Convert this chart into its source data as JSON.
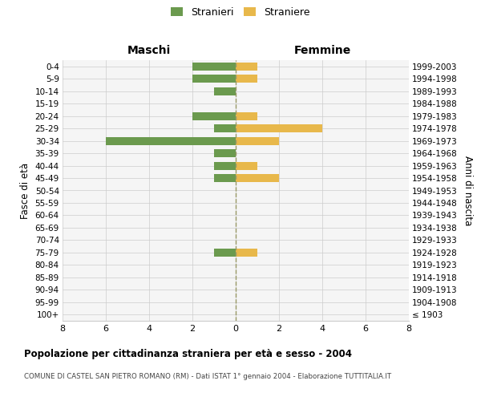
{
  "age_groups": [
    "100+",
    "95-99",
    "90-94",
    "85-89",
    "80-84",
    "75-79",
    "70-74",
    "65-69",
    "60-64",
    "55-59",
    "50-54",
    "45-49",
    "40-44",
    "35-39",
    "30-34",
    "25-29",
    "20-24",
    "15-19",
    "10-14",
    "5-9",
    "0-4"
  ],
  "birth_years": [
    "≤ 1903",
    "1904-1908",
    "1909-1913",
    "1914-1918",
    "1919-1923",
    "1924-1928",
    "1929-1933",
    "1934-1938",
    "1939-1943",
    "1944-1948",
    "1949-1953",
    "1954-1958",
    "1959-1963",
    "1964-1968",
    "1969-1973",
    "1974-1978",
    "1979-1983",
    "1984-1988",
    "1989-1993",
    "1994-1998",
    "1999-2003"
  ],
  "maschi_stranieri": [
    0,
    0,
    0,
    0,
    0,
    1,
    0,
    0,
    0,
    0,
    0,
    1,
    1,
    1,
    6,
    1,
    2,
    0,
    1,
    2,
    2
  ],
  "femmine_straniere": [
    0,
    0,
    0,
    0,
    0,
    1,
    0,
    0,
    0,
    0,
    0,
    2,
    1,
    0,
    2,
    4,
    1,
    0,
    0,
    1,
    1
  ],
  "color_maschi": "#6b9a4e",
  "color_femmine": "#e8b84b",
  "xlim": 8,
  "title": "Popolazione per cittadinanza straniera per età e sesso - 2004",
  "subtitle": "COMUNE DI CASTEL SAN PIETRO ROMANO (RM) - Dati ISTAT 1° gennaio 2004 - Elaborazione TUTTITALIA.IT",
  "ylabel_left": "Fasce di età",
  "ylabel_right": "Anni di nascita",
  "xlabel_maschi": "Maschi",
  "xlabel_femmine": "Femmine",
  "legend_stranieri": "Stranieri",
  "legend_straniere": "Straniere",
  "bg_color": "#f5f5f5",
  "grid_color": "#cccccc",
  "fig_width": 6.0,
  "fig_height": 5.0,
  "fig_dpi": 100
}
